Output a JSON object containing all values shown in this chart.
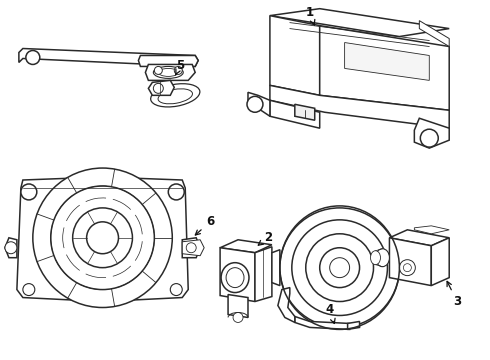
{
  "background_color": "#ffffff",
  "line_color": "#2a2a2a",
  "line_width": 1.1,
  "fig_width": 4.9,
  "fig_height": 3.6,
  "dpi": 100
}
